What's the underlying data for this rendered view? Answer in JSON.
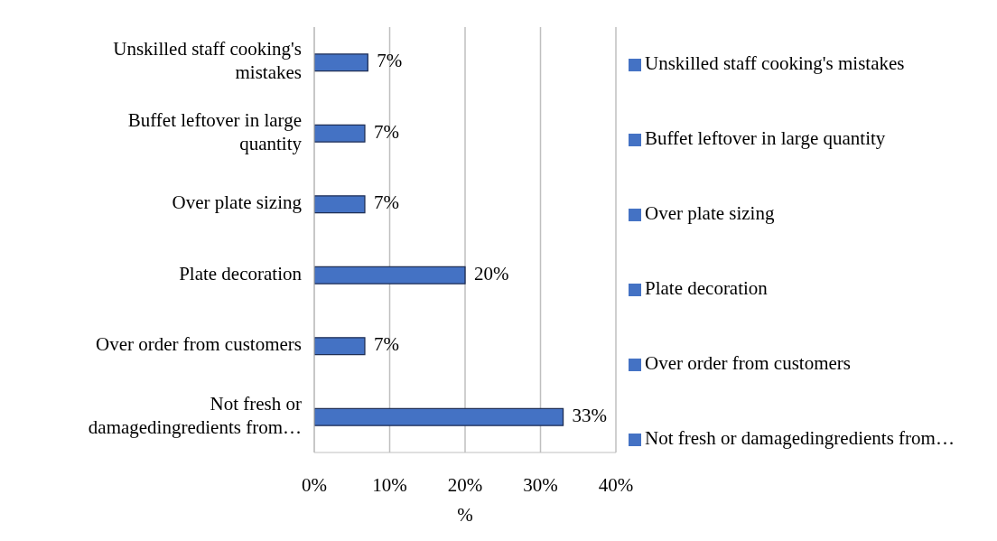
{
  "chart_data": {
    "type": "bar",
    "orientation": "horizontal",
    "stacked": true,
    "xlabel": "%",
    "categories": [
      "Unskilled staff cooking's mistakes",
      "Buffet leftover in large quantity",
      "Over plate sizing",
      "Plate decoration",
      "Over order from customers",
      "Not fresh or damagedingredients from…"
    ],
    "series": [
      {
        "name": "Unskilled staff cooking's mistakes",
        "color": "#4472c4",
        "values": [
          7.1,
          null,
          null,
          null,
          null,
          null
        ],
        "value_labels": [
          "7%",
          null,
          null,
          null,
          null,
          null
        ]
      },
      {
        "name": "Buffet leftover in large quantity",
        "color": "#4472c4",
        "values": [
          null,
          6.7,
          null,
          null,
          null,
          null
        ],
        "value_labels": [
          null,
          "7%",
          null,
          null,
          null,
          null
        ]
      },
      {
        "name": "Over plate sizing",
        "color": "#4472c4",
        "values": [
          null,
          null,
          6.7,
          null,
          null,
          null
        ],
        "value_labels": [
          null,
          null,
          "7%",
          null,
          null,
          null
        ]
      },
      {
        "name": "Plate decoration",
        "color": "#4472c4",
        "values": [
          null,
          null,
          null,
          20,
          null,
          null
        ],
        "value_labels": [
          null,
          null,
          null,
          "20%",
          null,
          null
        ]
      },
      {
        "name": "Over order from customers",
        "color": "#4472c4",
        "values": [
          null,
          null,
          null,
          null,
          6.7,
          null
        ],
        "value_labels": [
          null,
          null,
          null,
          null,
          "7%",
          null
        ]
      },
      {
        "name": "Not fresh or damagedingredients from…",
        "color": "#4472c4",
        "values": [
          null,
          null,
          null,
          null,
          null,
          33
        ],
        "value_labels": [
          null,
          null,
          null,
          null,
          null,
          "33%"
        ]
      }
    ],
    "xlim": [
      0,
      40
    ],
    "xticks": [
      {
        "value": 0,
        "label": "0%"
      },
      {
        "value": 10,
        "label": "10%"
      },
      {
        "value": 20,
        "label": "20%"
      },
      {
        "value": 30,
        "label": "30%"
      },
      {
        "value": 40,
        "label": "40%"
      }
    ],
    "grid": "x",
    "legend": "right"
  }
}
